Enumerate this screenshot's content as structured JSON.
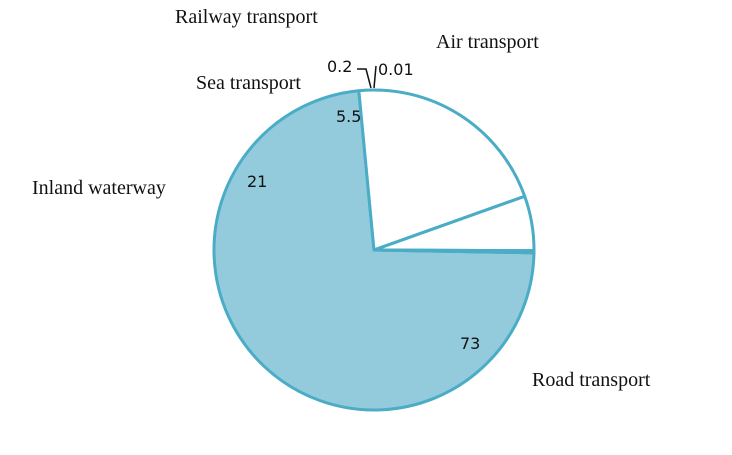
{
  "chart_data": {
    "type": "pie",
    "categories": [
      "Road transport",
      "Inland waterway",
      "Sea transport",
      "Railway transport",
      "Air transport"
    ],
    "values": [
      73,
      21,
      5.5,
      0.2,
      0.01
    ],
    "value_labels": [
      "73",
      "21",
      "5.5",
      "0.2",
      "0.01"
    ],
    "title": "",
    "legend": "none",
    "colors": {
      "Road transport": "#93CBDD",
      "Inland waterway": "#FFFFFF",
      "Sea transport": "#FFFFFF",
      "Railway transport": "#FFFFFF",
      "Air transport": "#FFFFFF",
      "outline": "#4BACC6"
    }
  }
}
